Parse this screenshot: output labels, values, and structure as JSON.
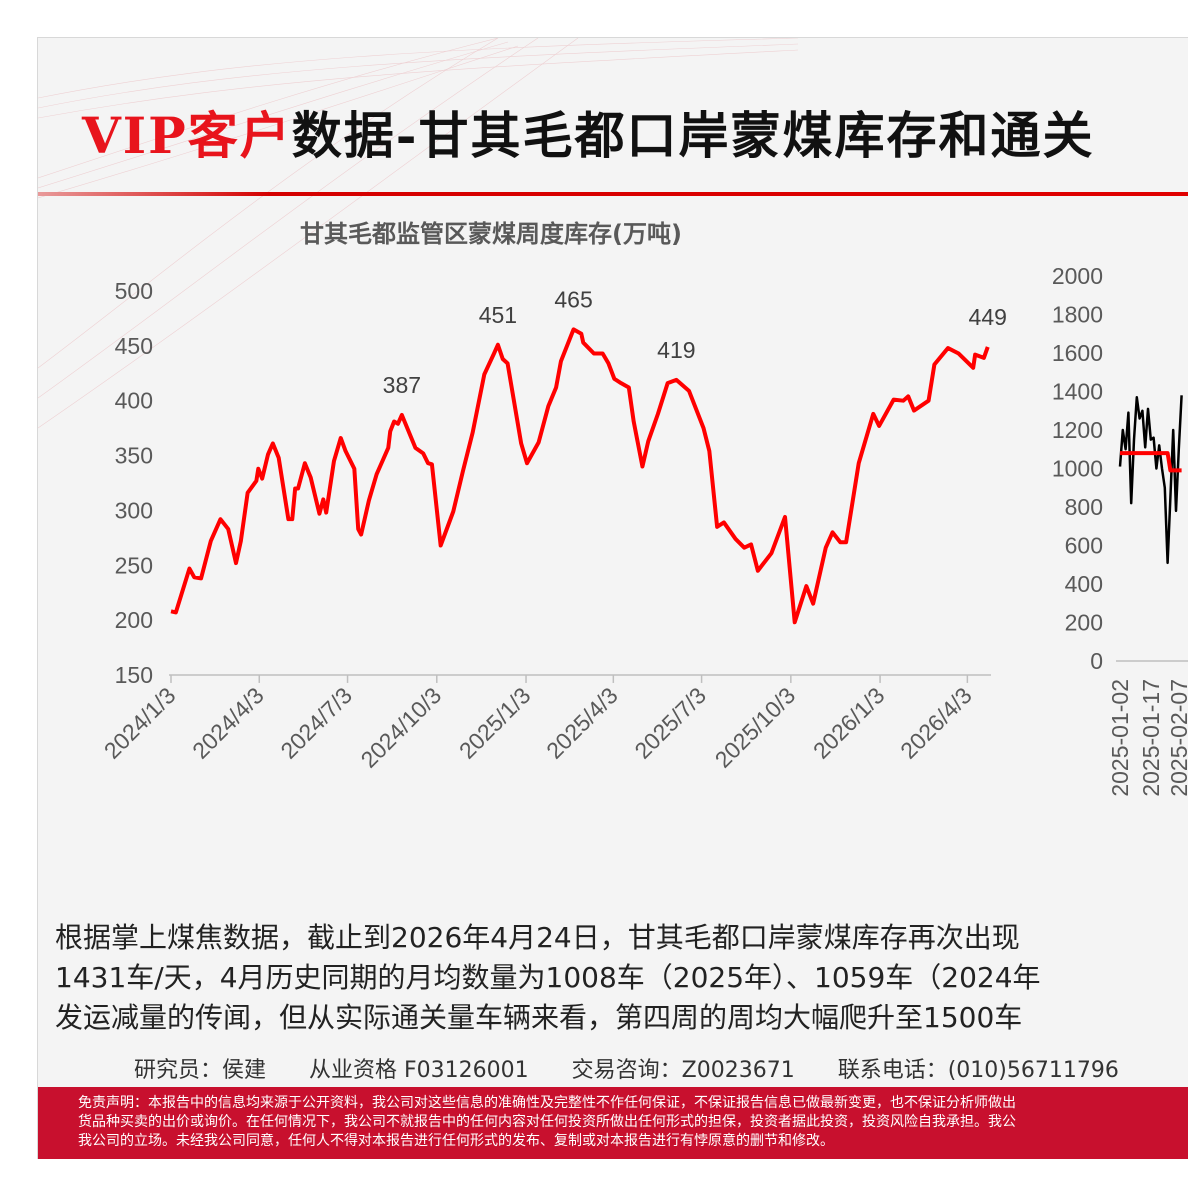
{
  "header": {
    "title_highlight": "VIP客户",
    "title_rest": "数据-甘其毛都口岸蒙煤库存和通关"
  },
  "colors": {
    "accent": "#e8141c",
    "footer_bg": "#c8102e",
    "series_red": "#ff0000",
    "series_black": "#000000"
  },
  "chart_data": [
    {
      "type": "line",
      "title": "甘其毛都监管区蒙煤周度库存(万吨)",
      "ylim": [
        150,
        500
      ],
      "yticks": [
        "150",
        "200",
        "250",
        "300",
        "350",
        "400",
        "450",
        "500"
      ],
      "xticks": [
        "2024/1/3",
        "2024/4/3",
        "2024/7/3",
        "2024/10/3",
        "2025/1/3",
        "2025/4/3",
        "2025/7/3",
        "2025/10/3",
        "2026/1/3",
        "2026/4/3"
      ],
      "grid": false,
      "data_labels": [
        {
          "x": "2024-08-28",
          "value": "387"
        },
        {
          "x": "2024-12-05",
          "value": "451"
        },
        {
          "x": "2025-02-21",
          "value": "465"
        },
        {
          "x": "2025-06-07",
          "value": "419"
        },
        {
          "x": "2026-04-24",
          "value": "449"
        }
      ],
      "series": [
        {
          "color": "#ff0000",
          "points": [
            [
              "2024-01-03",
              208
            ],
            [
              "2024-01-08",
              207
            ],
            [
              "2024-01-22",
              247
            ],
            [
              "2024-01-27",
              239
            ],
            [
              "2024-02-03",
              238
            ],
            [
              "2024-02-13",
              272
            ],
            [
              "2024-02-23",
              292
            ],
            [
              "2024-03-02",
              283
            ],
            [
              "2024-03-10",
              252
            ],
            [
              "2024-03-15",
              272
            ],
            [
              "2024-03-22",
              316
            ],
            [
              "2024-03-31",
              327
            ],
            [
              "2024-04-02",
              338
            ],
            [
              "2024-04-06",
              329
            ],
            [
              "2024-04-12",
              351
            ],
            [
              "2024-04-17",
              361
            ],
            [
              "2024-04-23",
              348
            ],
            [
              "2024-05-03",
              292
            ],
            [
              "2024-05-07",
              292
            ],
            [
              "2024-05-10",
              320
            ],
            [
              "2024-05-13",
              320
            ],
            [
              "2024-05-20",
              343
            ],
            [
              "2024-05-26",
              330
            ],
            [
              "2024-06-04",
              297
            ],
            [
              "2024-06-08",
              310
            ],
            [
              "2024-06-11",
              298
            ],
            [
              "2024-06-19",
              345
            ],
            [
              "2024-06-26",
              366
            ],
            [
              "2024-07-01",
              354
            ],
            [
              "2024-07-10",
              338
            ],
            [
              "2024-07-14",
              283
            ],
            [
              "2024-07-17",
              278
            ],
            [
              "2024-07-25",
              309
            ],
            [
              "2024-08-02",
              333
            ],
            [
              "2024-08-14",
              357
            ],
            [
              "2024-08-16",
              372
            ],
            [
              "2024-08-20",
              381
            ],
            [
              "2024-08-24",
              379
            ],
            [
              "2024-08-28",
              387
            ],
            [
              "2024-09-11",
              357
            ],
            [
              "2024-09-19",
              352
            ],
            [
              "2024-09-24",
              343
            ],
            [
              "2024-09-28",
              342
            ],
            [
              "2024-10-07",
              268
            ],
            [
              "2024-10-20",
              299
            ],
            [
              "2024-10-30",
              336
            ],
            [
              "2024-11-09",
              371
            ],
            [
              "2024-11-21",
              424
            ],
            [
              "2024-12-01",
              443
            ],
            [
              "2024-12-05",
              451
            ],
            [
              "2024-12-10",
              438
            ],
            [
              "2024-12-15",
              434
            ],
            [
              "2024-12-29",
              361
            ],
            [
              "2025-01-04",
              343
            ],
            [
              "2025-01-16",
              362
            ],
            [
              "2025-01-26",
              395
            ],
            [
              "2025-02-03",
              412
            ],
            [
              "2025-02-08",
              436
            ],
            [
              "2025-02-21",
              465
            ],
            [
              "2025-03-01",
              461
            ],
            [
              "2025-03-03",
              453
            ],
            [
              "2025-03-14",
              443
            ],
            [
              "2025-03-23",
              443
            ],
            [
              "2025-03-29",
              434
            ],
            [
              "2025-04-04",
              420
            ],
            [
              "2025-04-11",
              416
            ],
            [
              "2025-04-19",
              412
            ],
            [
              "2025-04-24",
              381
            ],
            [
              "2025-05-03",
              340
            ],
            [
              "2025-05-09",
              363
            ],
            [
              "2025-05-19",
              388
            ],
            [
              "2025-05-29",
              416
            ],
            [
              "2025-06-07",
              419
            ],
            [
              "2025-06-20",
              409
            ],
            [
              "2025-07-05",
              375
            ],
            [
              "2025-07-11",
              354
            ],
            [
              "2025-07-19",
              285
            ],
            [
              "2025-07-26",
              289
            ],
            [
              "2025-08-07",
              274
            ],
            [
              "2025-08-16",
              266
            ],
            [
              "2025-08-23",
              269
            ],
            [
              "2025-08-30",
              245
            ],
            [
              "2025-09-13",
              261
            ],
            [
              "2025-09-27",
              294
            ],
            [
              "2025-10-07",
              198
            ],
            [
              "2025-10-19",
              231
            ],
            [
              "2025-10-26",
              215
            ],
            [
              "2025-11-08",
              266
            ],
            [
              "2025-11-15",
              280
            ],
            [
              "2025-11-23",
              271
            ],
            [
              "2025-11-29",
              271
            ],
            [
              "2025-12-12",
              343
            ],
            [
              "2025-12-27",
              388
            ],
            [
              "2026-01-02",
              377
            ],
            [
              "2026-01-17",
              401
            ],
            [
              "2026-01-27",
              400
            ],
            [
              "2026-02-01",
              404
            ],
            [
              "2026-02-07",
              391
            ],
            [
              "2026-02-22",
              400
            ],
            [
              "2026-02-28",
              433
            ],
            [
              "2026-03-14",
              448
            ],
            [
              "2026-03-25",
              443
            ],
            [
              "2026-04-09",
              430
            ],
            [
              "2026-04-11",
              442
            ],
            [
              "2026-04-20",
              439
            ],
            [
              "2026-04-24",
              449
            ]
          ]
        }
      ]
    },
    {
      "type": "line",
      "ylim": [
        0,
        2000
      ],
      "yticks": [
        "0",
        "200",
        "400",
        "600",
        "800",
        "1000",
        "1200",
        "1400",
        "1600",
        "1800",
        "2000"
      ],
      "categories": [
        "2025-01-02",
        "2025-01-03",
        "2025-01-06",
        "2025-01-07",
        "2025-01-08",
        "2025-01-09",
        "2025-01-10",
        "2025-01-13",
        "2025-01-14",
        "2025-01-15",
        "2025-01-16",
        "2025-01-17",
        "2025-01-20",
        "2025-01-21",
        "2025-01-22",
        "2025-01-23",
        "2025-01-24",
        "2025-01-26",
        "2025-01-27",
        "2025-02-05",
        "2025-02-06",
        "2025-02-07",
        "2025-02-10"
      ],
      "xticks": [
        "2025-01-02",
        "2025-01-17",
        "2025-02-07"
      ],
      "series": [
        {
          "color": "#000000",
          "values": [
            1010,
            1200,
            1100,
            1290,
            820,
            1150,
            1370,
            1260,
            1300,
            1110,
            1310,
            1150,
            1160,
            1000,
            1120,
            1000,
            900,
            510,
            850,
            1200,
            780,
            1100,
            1380
          ]
        },
        {
          "color": "#ff0000",
          "values": [
            1080,
            1080,
            1080,
            1080,
            1080,
            1080,
            1080,
            1080,
            1080,
            1080,
            1080,
            1080,
            1080,
            1080,
            1080,
            1080,
            1080,
            1080,
            990,
            990,
            990,
            990,
            990
          ]
        }
      ]
    }
  ],
  "commentary": {
    "lines": [
      "根据掌上煤焦数据，截止到2026年4月24日，甘其毛都口岸蒙煤库存再次出现",
      "1431车/天，4月历史同期的月均数量为1008车（2025年）、1059车（2024年",
      "发运减量的传闻，但从实际通关量车辆来看，第四周的周均大幅爬升至1500车"
    ]
  },
  "author": {
    "researcher": "研究员：侯建",
    "qualification": "从业资格 F03126001",
    "consulting": "交易咨询：Z0023671",
    "phone": "联系电话：(010)56711796"
  },
  "disclaimer": {
    "lines": [
      "免责声明：本报告中的信息均来源于公开资料，我公司对这些信息的准确性及完整性不作任何保证，不保证报告信息已做最新变更，也不保证分析师做出",
      "货品种买卖的出价或询价。在任何情况下，我公司不就报告中的任何内容对任何投资所做出任何形式的担保，投资者据此投资，投资风险自我承担。我公",
      "我公司的立场。未经我公司同意，任何人不得对本报告进行任何形式的发布、复制或对本报告进行有悖原意的删节和修改。"
    ]
  }
}
